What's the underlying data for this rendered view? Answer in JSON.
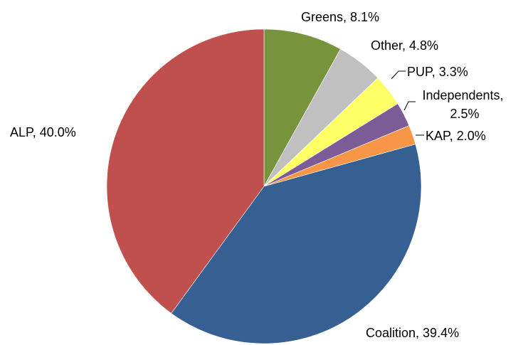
{
  "chart_data": {
    "type": "pie",
    "title": "",
    "start_angle_deg": 0,
    "direction": "clockwise",
    "legend": "none",
    "slices": [
      {
        "name": "Greens",
        "value": 8.1,
        "label": "Greens, 8.1%",
        "color": "#77933C"
      },
      {
        "name": "Other",
        "value": 4.8,
        "label": "Other, 4.8%",
        "color": "#C0C0C0"
      },
      {
        "name": "PUP",
        "value": 3.3,
        "label": "PUP, 3.3%",
        "color": "#FFFF66"
      },
      {
        "name": "Independents",
        "value": 2.5,
        "label": [
          "Independents,",
          "2.5%"
        ],
        "color": "#7B5C97"
      },
      {
        "name": "KAP",
        "value": 2.0,
        "label": "KAP, 2.0%",
        "color": "#F79646"
      },
      {
        "name": "Coalition",
        "value": 39.4,
        "label": "Coalition, 39.4%",
        "color": "#376092"
      },
      {
        "name": "ALP",
        "value": 40.0,
        "label": "ALP, 40.0%",
        "color": "#C0504D"
      }
    ]
  }
}
